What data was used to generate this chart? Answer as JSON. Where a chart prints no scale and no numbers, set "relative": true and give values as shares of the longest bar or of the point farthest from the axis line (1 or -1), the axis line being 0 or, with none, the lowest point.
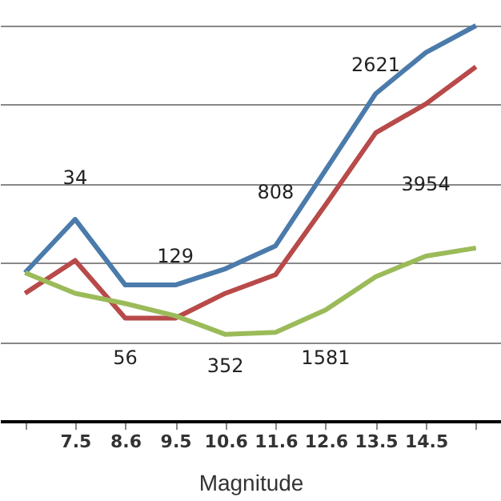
{
  "chart_data": {
    "type": "line",
    "xlabel": "Magnitude",
    "relative": true,
    "grid": "y",
    "marker": "none",
    "line_style": "solid",
    "categories": [
      null,
      "7.5",
      "8.6",
      "9.5",
      "10.6",
      "11.6",
      "12.6",
      "13.5",
      "14.5",
      null
    ],
    "series": [
      {
        "color": "#4a7bab",
        "values": [
          0.375,
          0.51,
          0.344,
          0.344,
          0.385,
          0.443,
          0.635,
          0.828,
          0.932,
          1
        ]
      },
      {
        "color": "#b84a4a",
        "values": [
          0.323,
          0.406,
          0.26,
          0.26,
          0.323,
          0.37,
          0.547,
          0.729,
          0.802,
          0.896
        ]
      },
      {
        "color": "#9bbb59",
        "values": [
          0.375,
          0.323,
          0.297,
          0.266,
          0.219,
          0.224,
          0.281,
          0.365,
          0.417,
          0.4375
        ]
      }
    ],
    "annotations": [
      "34",
      "56",
      "129",
      "352",
      "808",
      "1581",
      "2621",
      "3954"
    ]
  }
}
